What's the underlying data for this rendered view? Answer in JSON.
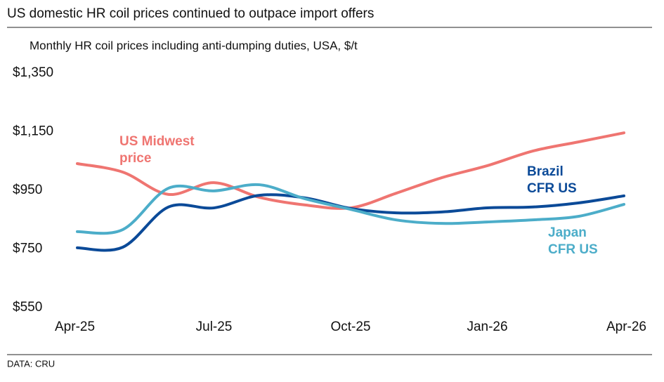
{
  "chart_data": {
    "type": "line",
    "title": "US domestic HR coil prices continued to outpace import offers",
    "subtitle": "Monthly HR coil prices including anti-dumping duties, USA, $/t",
    "source": "DATA: CRU",
    "categories": [
      "Apr-25",
      null,
      null,
      "Jul-25",
      null,
      null,
      "Oct-25",
      null,
      null,
      "Jan-26",
      null,
      null,
      "Apr-26"
    ],
    "series": [
      {
        "name": "US Midwest price",
        "color": "#ef7571",
        "values": [
          1041,
          1012,
          936,
          976,
          926,
          900,
          890,
          940,
          993,
          1034,
          1084,
          1115,
          1146
        ]
      },
      {
        "name": "Brazil CFR US",
        "color": "#0b4a98",
        "values": [
          754,
          756,
          893,
          890,
          933,
          924,
          888,
          873,
          876,
          890,
          893,
          907,
          931
        ]
      },
      {
        "name": "Japan CFR US",
        "color": "#4cadc9",
        "values": [
          809,
          816,
          957,
          948,
          969,
          921,
          885,
          849,
          837,
          842,
          849,
          861,
          902
        ]
      }
    ],
    "ylim": [
      550,
      1350
    ],
    "yticks": [
      {
        "value": 550,
        "label": "$550"
      },
      {
        "value": 750,
        "label": "$750"
      },
      {
        "value": 950,
        "label": "$950"
      },
      {
        "value": 1150,
        "label": "$1,150"
      },
      {
        "value": 1350,
        "label": "$1,350"
      }
    ],
    "grid": false
  }
}
